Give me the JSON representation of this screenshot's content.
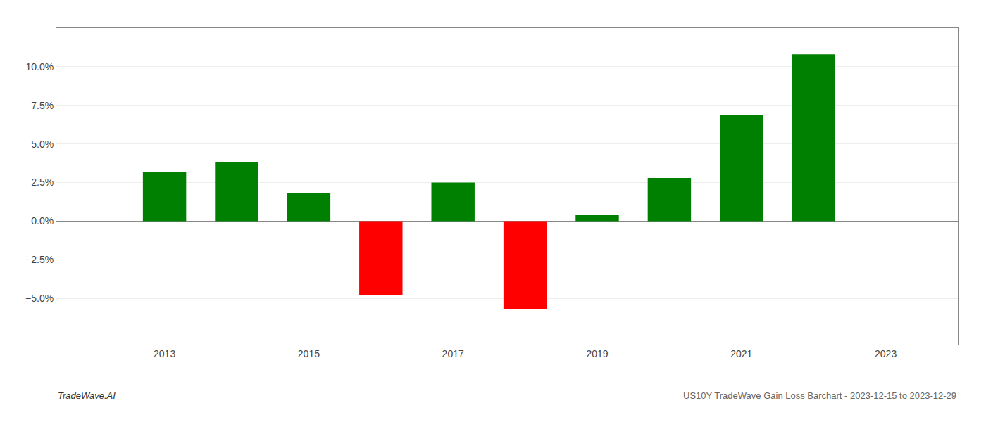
{
  "chart_data": {
    "type": "bar",
    "x": [
      2013,
      2014,
      2015,
      2016,
      2017,
      2018,
      2019,
      2020,
      2021,
      2022
    ],
    "values": [
      0.032,
      0.038,
      0.018,
      -0.048,
      0.025,
      -0.057,
      0.004,
      0.028,
      0.069,
      0.108
    ],
    "colors": [
      "#008000",
      "#008000",
      "#008000",
      "#ff0000",
      "#008000",
      "#ff0000",
      "#008000",
      "#008000",
      "#008000",
      "#008000"
    ],
    "xlim": [
      2011.5,
      2024.0
    ],
    "xticks": [
      2013,
      2015,
      2017,
      2019,
      2021,
      2023
    ],
    "ylim": [
      -0.08,
      0.125
    ],
    "yticks": [
      {
        "value": -0.05,
        "label": "−5.0%"
      },
      {
        "value": -0.025,
        "label": "−2.5%"
      },
      {
        "value": 0.0,
        "label": "0.0%"
      },
      {
        "value": 0.025,
        "label": "2.5%"
      },
      {
        "value": 0.05,
        "label": "5.0%"
      },
      {
        "value": 0.075,
        "label": "7.5%"
      },
      {
        "value": 0.1,
        "label": "10.0%"
      }
    ],
    "grid": true,
    "annotations": [
      "TradeWave.AI",
      "US10Y TradeWave Gain Loss Barchart - 2023-12-15 to 2023-12-29"
    ]
  }
}
